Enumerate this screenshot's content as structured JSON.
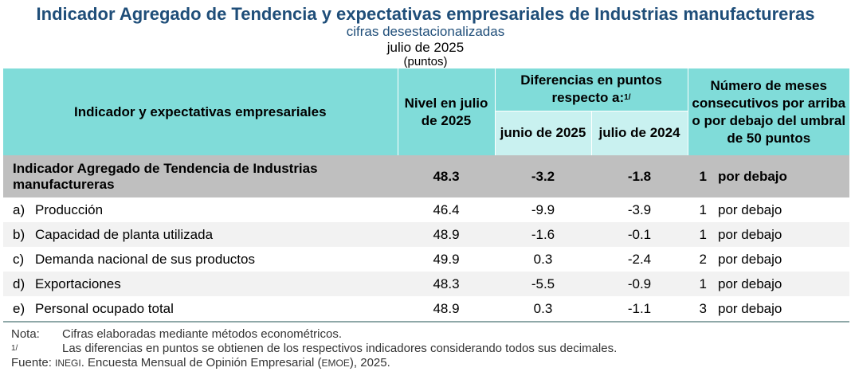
{
  "title": "Indicador Agregado de Tendencia y expectativas empresariales de Industrias manufactureras",
  "subtitle": "cifras desestacionalizadas",
  "period": "julio de 2025",
  "units": "(puntos)",
  "header": {
    "col_indicator": "Indicador y expectativas empresariales",
    "col_level": "Nivel en julio de 2025",
    "col_diff": "Diferencias en puntos respecto a:",
    "col_diff_note": "1/",
    "col_diff_june": "junio de 2025",
    "col_diff_july": "julio de 2024",
    "col_months": "Número de meses consecutivos por arriba o por debajo del umbral de 50 puntos"
  },
  "aggregate": {
    "label": "Indicador Agregado de Tendencia de Industrias manufactureras",
    "level": "48.3",
    "diff_june": "-3.2",
    "diff_july": "-1.8",
    "months": "1",
    "direction": "por debajo"
  },
  "rows": [
    {
      "letter": "a)",
      "label": "Producción",
      "level": "46.4",
      "diff_june": "-9.9",
      "diff_july": "-3.9",
      "months": "1",
      "direction": "por debajo"
    },
    {
      "letter": "b)",
      "label": "Capacidad de planta utilizada",
      "level": "48.9",
      "diff_june": "-1.6",
      "diff_july": "-0.1",
      "months": "1",
      "direction": "por debajo"
    },
    {
      "letter": "c)",
      "label": "Demanda nacional de sus productos",
      "level": "49.9",
      "diff_june": "0.3",
      "diff_july": "-2.4",
      "months": "2",
      "direction": "por debajo"
    },
    {
      "letter": "d)",
      "label": "Exportaciones",
      "level": "48.3",
      "diff_june": "-5.5",
      "diff_july": "-0.9",
      "months": "1",
      "direction": "por debajo"
    },
    {
      "letter": "e)",
      "label": "Personal ocupado total",
      "level": "48.9",
      "diff_june": "0.3",
      "diff_july": "-1.1",
      "months": "3",
      "direction": "por debajo"
    }
  ],
  "footnotes": {
    "nota_key": "Nota:",
    "nota_text": "Cifras elaboradas mediante métodos econométricos.",
    "note1_key": "1/",
    "note1_text": "Las diferencias en puntos se obtienen de los respectivos indicadores considerando todos sus decimales.",
    "source_key": "Fuente:",
    "source_inegi": "INEGI",
    "source_text_1": ". Encuesta Mensual de Opinión Empresarial (",
    "source_emoe": "EMOE",
    "source_text_2": "), 2025."
  }
}
